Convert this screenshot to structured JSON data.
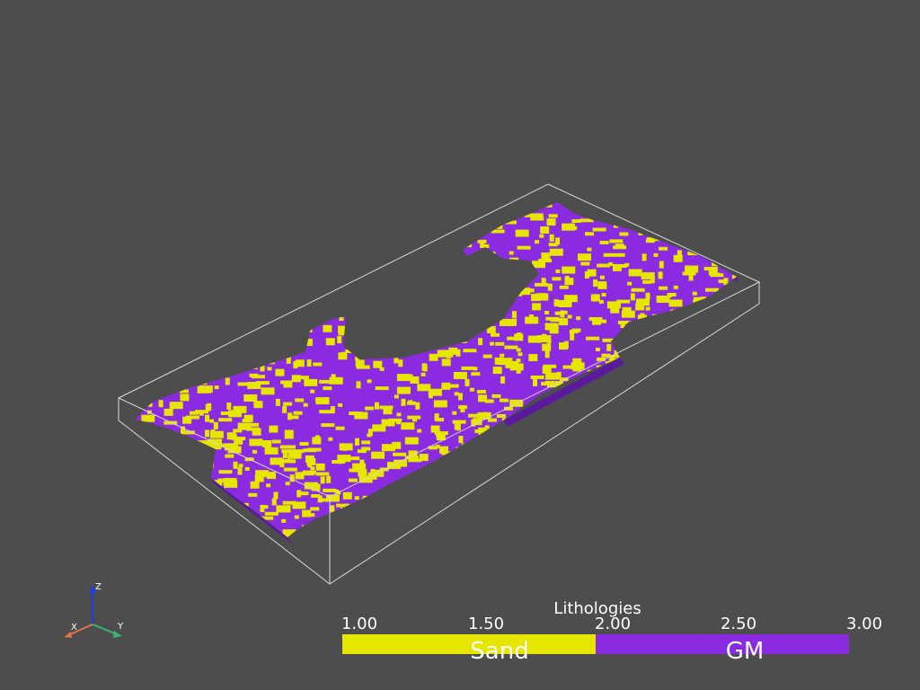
{
  "scalar_bar": {
    "title": "Lithologies",
    "ticks": [
      "1.00",
      "1.50",
      "2.00",
      "2.50",
      "3.00"
    ],
    "categories": [
      {
        "label": "Sand",
        "color": "#e6e600"
      },
      {
        "label": "GM",
        "color": "#8a2be2"
      }
    ]
  },
  "axes": {
    "x_label": "X",
    "y_label": "Y",
    "z_label": "Z"
  },
  "colors": {
    "background": "#4d4d4d",
    "bounding_box": "#d9d9d9",
    "sand": "#e6e600",
    "gm": "#8a2be2",
    "gm_side": "#5a1a9c",
    "x_axis": "#e8734a",
    "y_axis": "#3cb371",
    "z_axis": "#1f3fd8"
  }
}
